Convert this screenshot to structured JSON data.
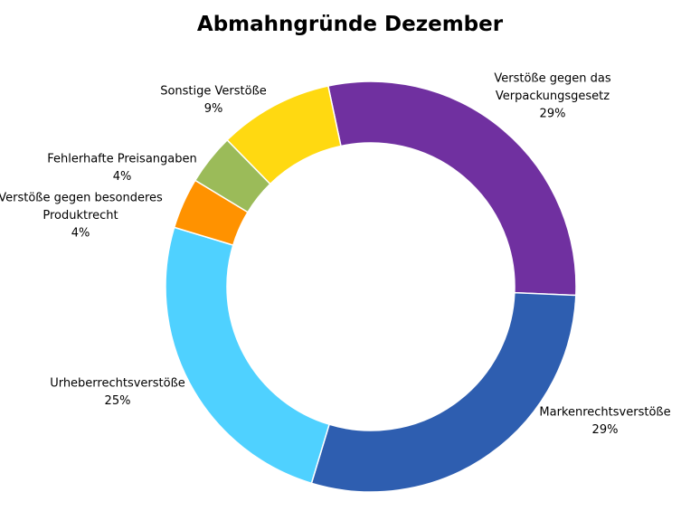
{
  "chart_data": {
    "type": "pie",
    "variant": "donut",
    "title": "Abmahngründe Dezember",
    "legend": "none",
    "slices": [
      {
        "label": "Verstöße gegen das Verpackungsgesetz",
        "value": 29,
        "value_label": "29%",
        "color": "#7030A0"
      },
      {
        "label": "Markenrechtsverstöße",
        "value": 29,
        "value_label": "29%",
        "color": "#2E5EB0"
      },
      {
        "label": "Urheberrechtsverstöße",
        "value": 25,
        "value_label": "25%",
        "color": "#4FD1FF"
      },
      {
        "label": "Verstöße gegen besonderes Produktrecht",
        "value": 4,
        "value_label": "4%",
        "color": "#FF9200"
      },
      {
        "label": "Fehlerhafte Preisangaben",
        "value": 4,
        "value_label": "4%",
        "color": "#9BBB59"
      },
      {
        "label": "Sonstige Verstöße",
        "value": 9,
        "value_label": "9%",
        "color": "#FFD911"
      }
    ]
  }
}
